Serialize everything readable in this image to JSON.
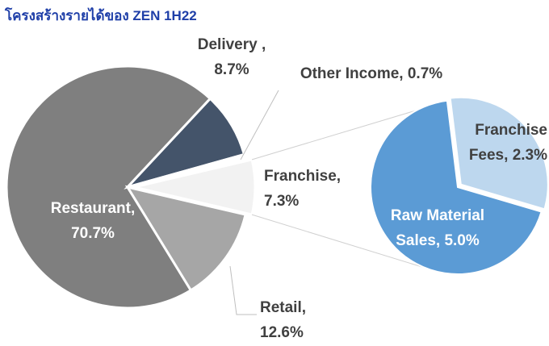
{
  "chart_data": {
    "type": "pie-of-pie",
    "title": "โครงสร้างรายได้ของ ZEN 1H22",
    "categories": [
      "Restaurant,",
      "Delivery ,",
      "Other Income,",
      "Franchise,",
      "Retail,"
    ],
    "values": [
      70.7,
      8.7,
      0.7,
      7.3,
      12.6
    ],
    "value_labels": [
      "70.7%",
      "8.7%",
      "0.7%",
      "7.3%",
      "12.6%"
    ],
    "colors": [
      "#7f7f7f",
      "#44546a",
      "#ffffff",
      "#f2f2f2",
      "#a6a6a6"
    ],
    "secondary": {
      "categories": [
        "Franchise Fees,",
        "Raw Material Sales,"
      ],
      "values": [
        2.3,
        5.0
      ],
      "value_labels": [
        "2.3%",
        "5.0%"
      ],
      "colors": [
        "#bdd7ee",
        "#5b9bd5"
      ]
    }
  }
}
